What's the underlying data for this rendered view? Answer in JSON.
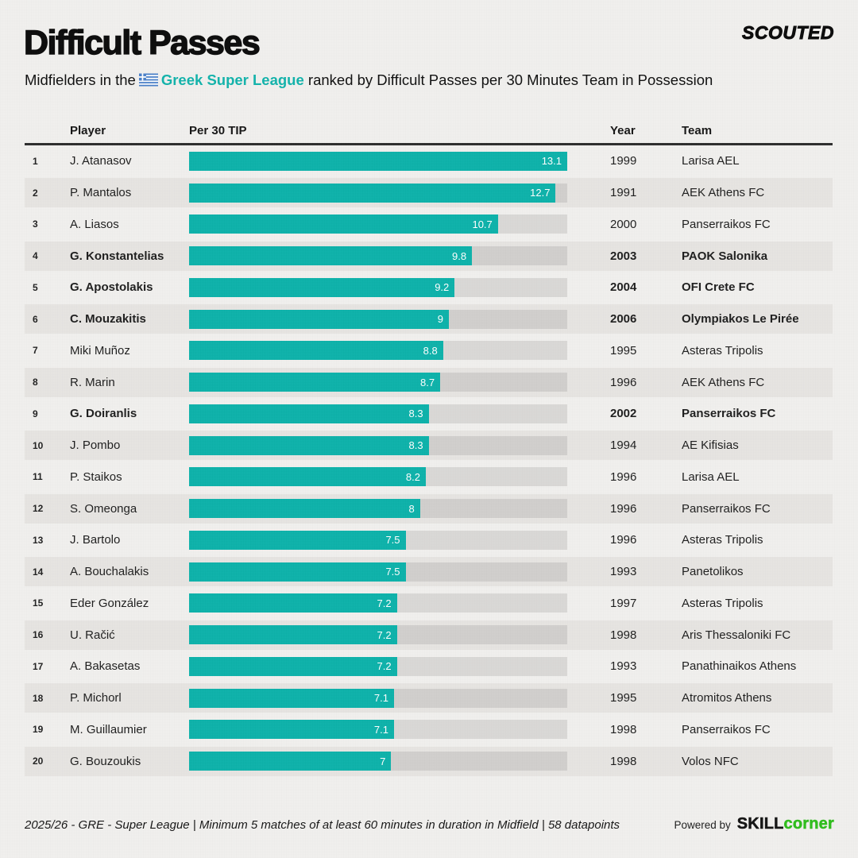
{
  "header": {
    "title": "Difficult Passes",
    "brand": "SCOUTED",
    "subtitle_prefix": "Midfielders in the",
    "subtitle_league": "Greek Super League",
    "subtitle_suffix": " ranked by Difficult Passes per 30 Minutes Team in Possession"
  },
  "table": {
    "columns": {
      "player": "Player",
      "per30": "Per 30 TIP",
      "year": "Year",
      "team": "Team"
    }
  },
  "chart_data": {
    "type": "bar",
    "orientation": "horizontal",
    "title": "Difficult Passes",
    "subtitle": "Midfielders in the Greek Super League ranked by Difficult Passes per 30 Minutes Team in Possession",
    "xlabel": "Per 30 TIP",
    "xlim": [
      0,
      13.1
    ],
    "bar_color": "#0db2aa",
    "categories": [
      "J. Atanasov",
      "P. Mantalos",
      "A. Liasos",
      "G. Konstantelias",
      "G. Apostolakis",
      "C. Mouzakitis",
      "Miki Muñoz",
      "R. Marin",
      "G. Doiranlis",
      "J. Pombo",
      "P. Staikos",
      "S. Omeonga",
      "J. Bartolo",
      "A. Bouchalakis",
      "Eder González",
      "U. Račić",
      "A. Bakasetas",
      "P. Michorl",
      "M. Guillaumier",
      "G. Bouzoukis"
    ],
    "values": [
      13.1,
      12.7,
      10.7,
      9.8,
      9.2,
      9,
      8.8,
      8.7,
      8.3,
      8.3,
      8.2,
      8,
      7.5,
      7.5,
      7.2,
      7.2,
      7.2,
      7.1,
      7.1,
      7
    ],
    "value_labels": [
      "13.1",
      "12.7",
      "10.7",
      "9.8",
      "9.2",
      "9",
      "8.8",
      "8.7",
      "8.3",
      "8.3",
      "8.2",
      "8",
      "7.5",
      "7.5",
      "7.2",
      "7.2",
      "7.2",
      "7.1",
      "7.1",
      "7"
    ],
    "years": [
      "1999",
      "1991",
      "2000",
      "2003",
      "2004",
      "2006",
      "1995",
      "1996",
      "2002",
      "1994",
      "1996",
      "1996",
      "1996",
      "1993",
      "1997",
      "1998",
      "1993",
      "1995",
      "1998",
      "1998"
    ],
    "teams": [
      "Larisa AEL",
      "AEK Athens FC",
      "Panserraikos FC",
      "PAOK Salonika",
      "OFI Crete FC",
      "Olympiakos Le Pirée",
      "Asteras Tripolis",
      "AEK Athens FC",
      "Panserraikos FC",
      "AE Kifisias",
      "Larisa AEL",
      "Panserraikos FC",
      "Asteras Tripolis",
      "Panetolikos",
      "Asteras Tripolis",
      "Aris Thessaloniki FC",
      "Panathinaikos Athens",
      "Atromitos Athens",
      "Panserraikos FC",
      "Volos NFC"
    ],
    "bold": [
      false,
      false,
      false,
      true,
      true,
      true,
      false,
      false,
      true,
      false,
      false,
      false,
      false,
      false,
      false,
      false,
      false,
      false,
      false,
      false
    ]
  },
  "footer": {
    "note": "2025/26 - GRE - Super League | Minimum 5 matches of at least 60 minutes in duration in Midfield | 58 datapoints",
    "powered_by": "Powered by",
    "brand_skill": "SKILL",
    "brand_corner": "corner"
  },
  "icons": {
    "league_flag": "greek-flag-icon"
  },
  "colors": {
    "background": "#f1f0ee",
    "row_band": "#e7e5e2",
    "bar": "#0db2aa",
    "accent_teal": "#12b3ab",
    "skillcorner_green": "#2fbd1c"
  }
}
